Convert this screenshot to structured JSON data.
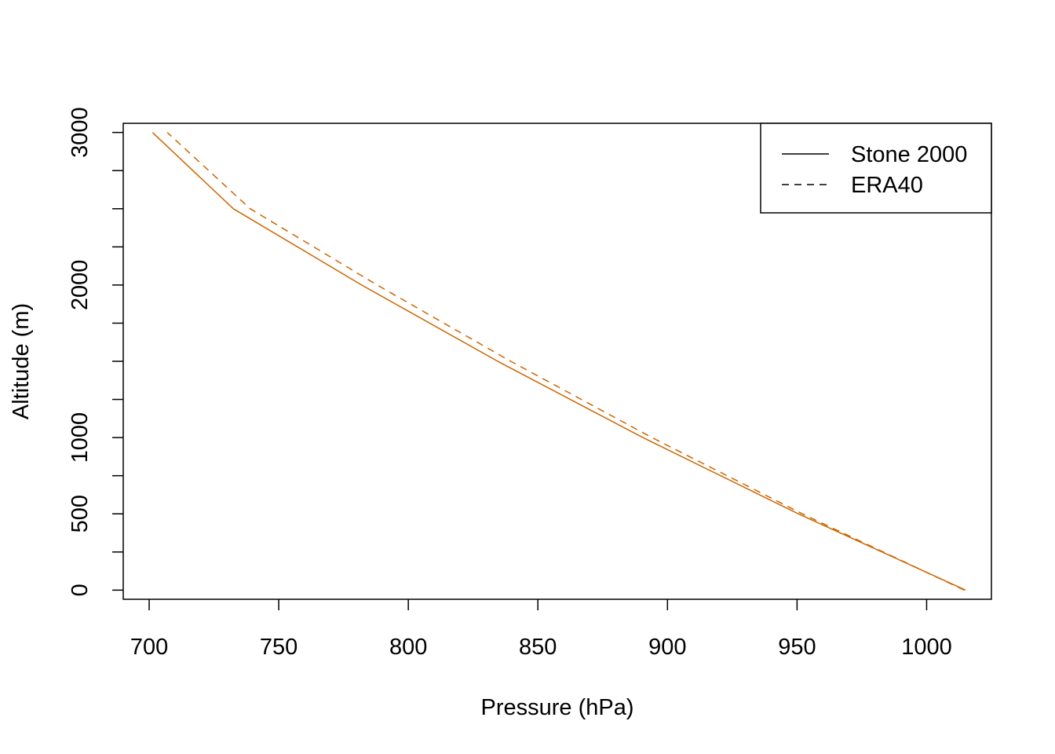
{
  "chart_data": {
    "type": "line",
    "title": "",
    "xlabel": "Pressure (hPa)",
    "ylabel": "Altitude (m)",
    "xlim": [
      690,
      1025
    ],
    "ylim": [
      -60,
      3060
    ],
    "x_ticks": [
      700,
      750,
      800,
      850,
      900,
      950,
      1000
    ],
    "y_ticks": [
      0,
      250,
      500,
      750,
      1000,
      1250,
      1500,
      1750,
      2000,
      2250,
      2500,
      2750,
      3000
    ],
    "y_tick_labels": [
      {
        "value": 0,
        "label": "0"
      },
      {
        "value": 500,
        "label": "500"
      },
      {
        "value": 1000,
        "label": "1000"
      },
      {
        "value": 2000,
        "label": "2000"
      },
      {
        "value": 3000,
        "label": "3000"
      }
    ],
    "grid": false,
    "legend_position": "top-right",
    "series_color": "#CC6600",
    "series": [
      {
        "name": "Stone 2000",
        "line_style": "solid",
        "points": [
          {
            "x": 1015.0,
            "y": 0
          },
          {
            "x": 950.5,
            "y": 500
          },
          {
            "x": 890.5,
            "y": 1000
          },
          {
            "x": 834.5,
            "y": 1500
          },
          {
            "x": 782.0,
            "y": 2000
          },
          {
            "x": 732.5,
            "y": 2500
          },
          {
            "x": 701.3,
            "y": 3000
          }
        ]
      },
      {
        "name": "ERA40",
        "line_style": "dashed",
        "points": [
          {
            "x": 1014.5,
            "y": 0
          },
          {
            "x": 952.0,
            "y": 500
          },
          {
            "x": 894.0,
            "y": 1000
          },
          {
            "x": 839.5,
            "y": 1500
          },
          {
            "x": 788.0,
            "y": 2000
          },
          {
            "x": 739.0,
            "y": 2500
          },
          {
            "x": 707.0,
            "y": 3000
          }
        ]
      }
    ]
  }
}
